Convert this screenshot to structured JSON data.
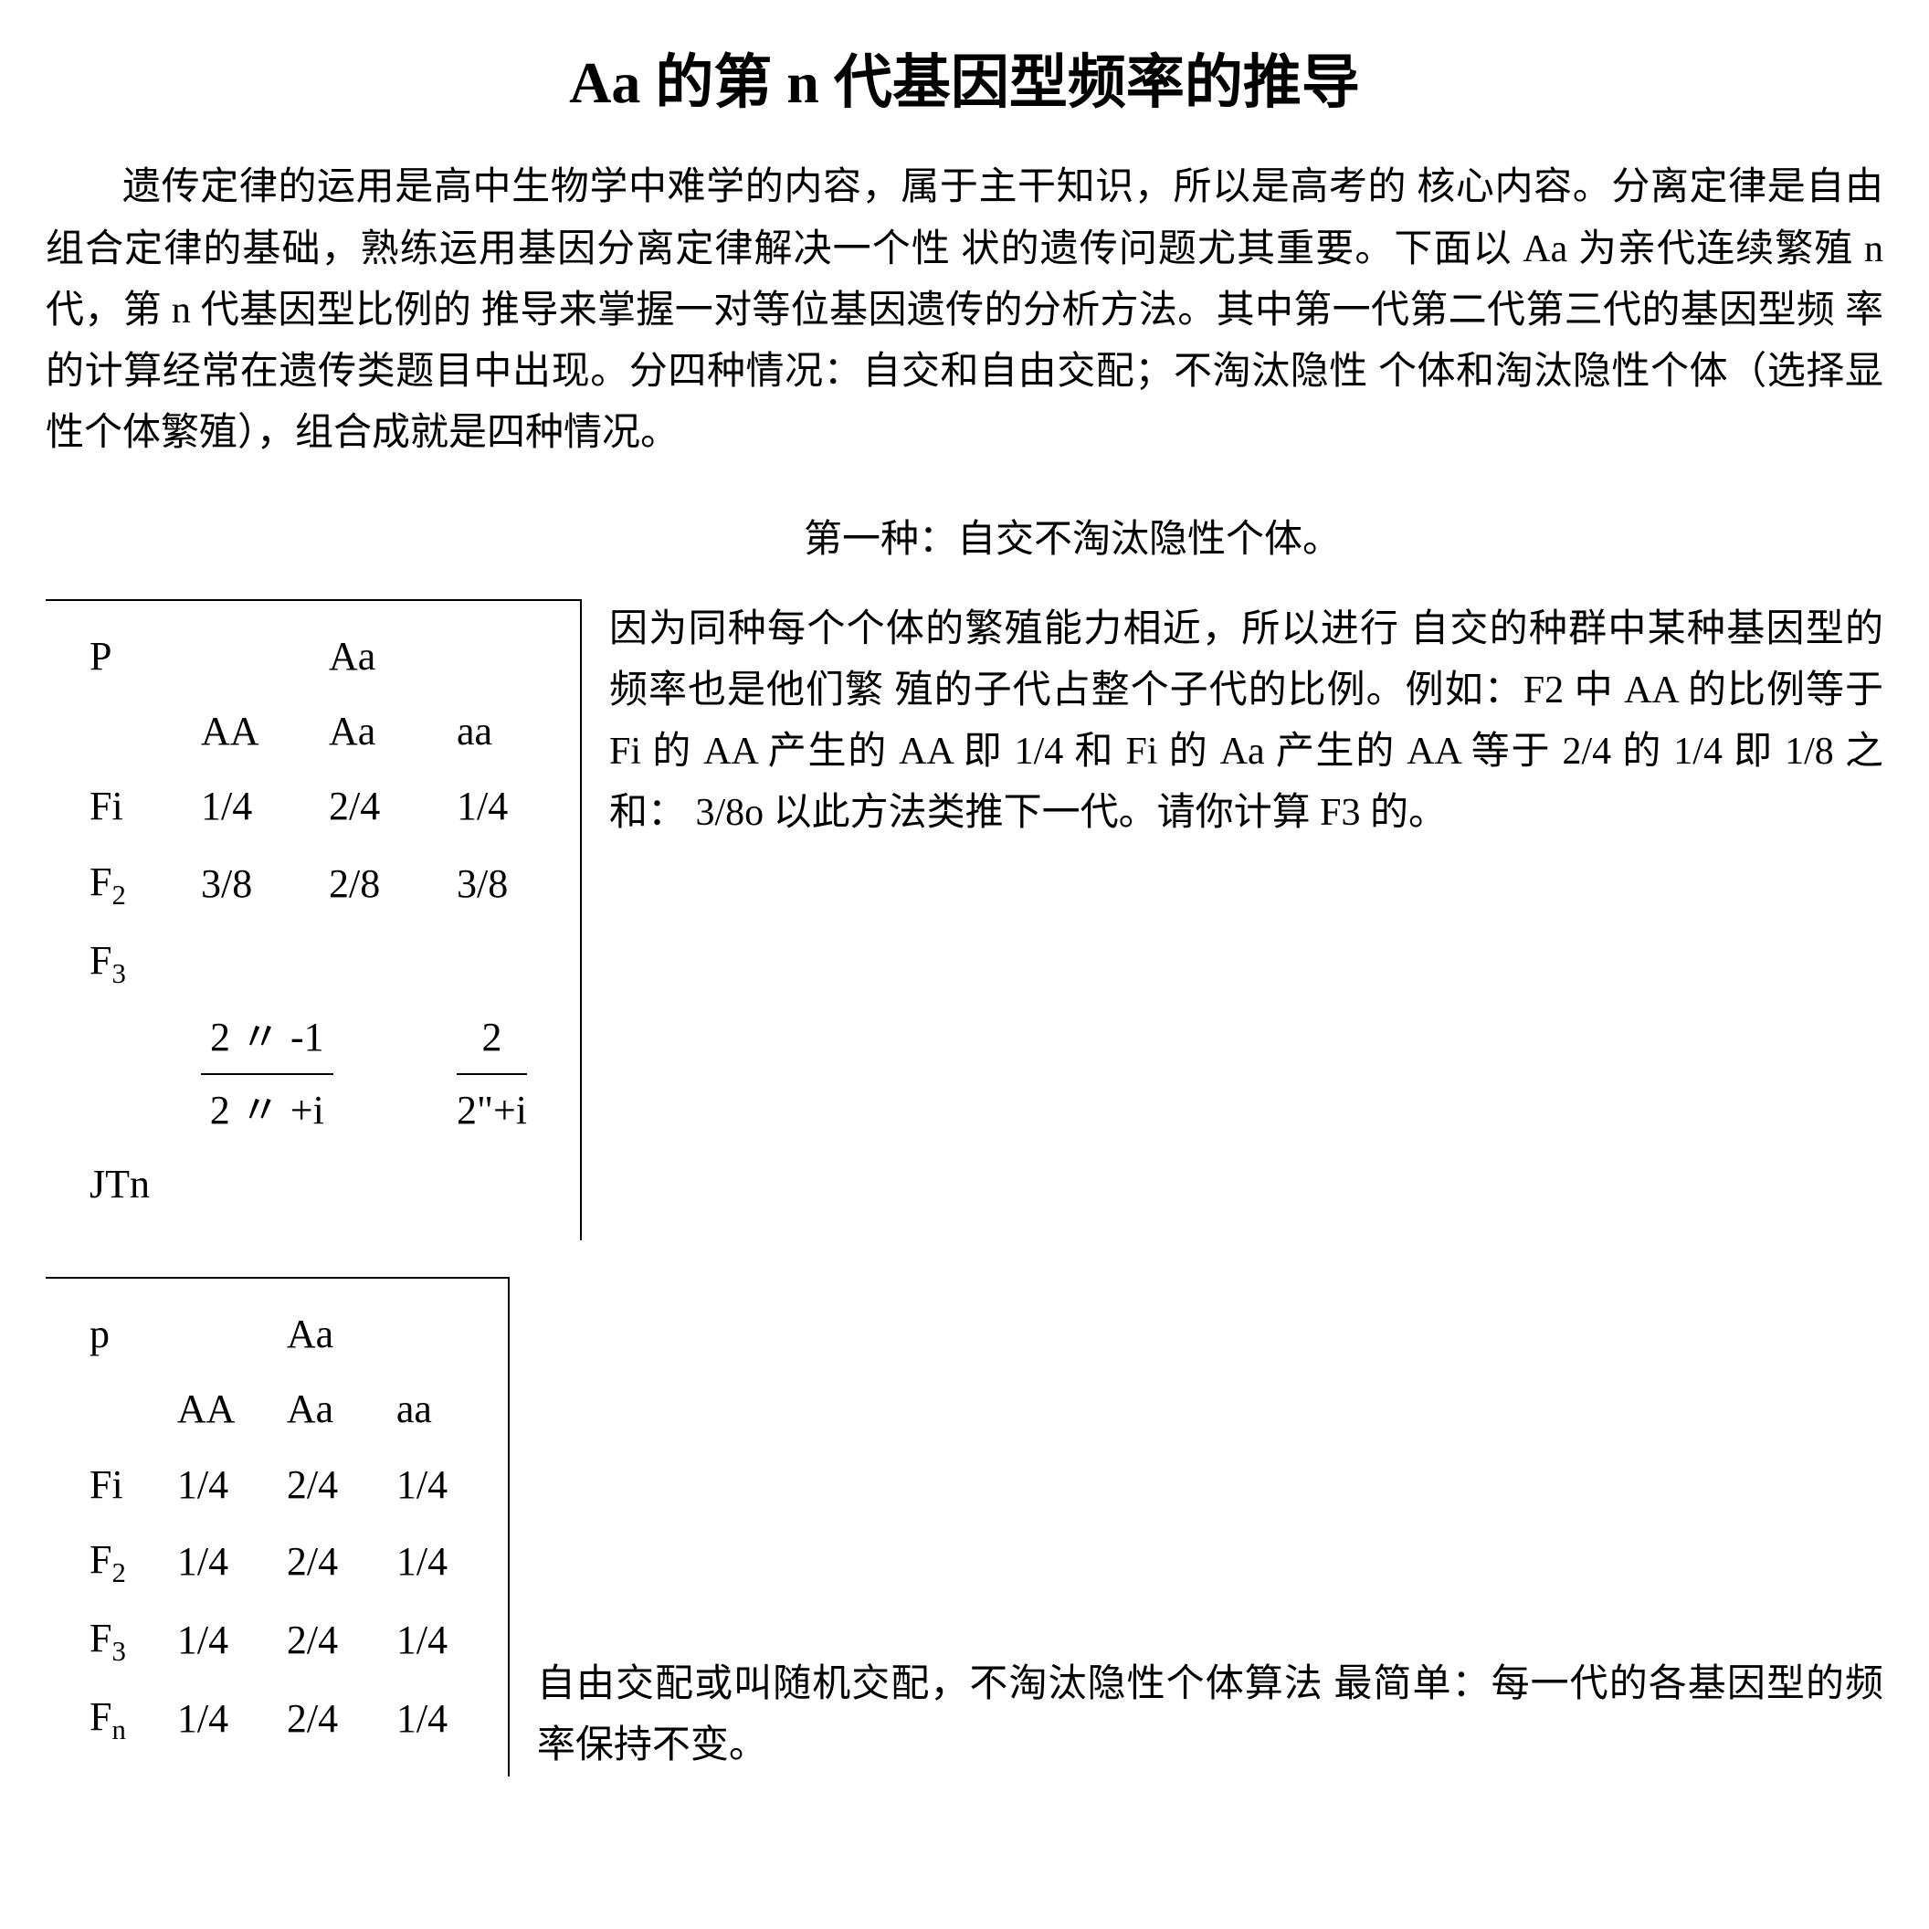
{
  "title": "Aa 的第 n 代基因型频率的推导",
  "intro": "遗传定律的运用是高中生物学中难学的内容，属于主干知识，所以是高考的 核心内容。分离定律是自由组合定律的基础，熟练运用基因分离定律解决一个性 状的遗传问题尤其重要。下面以 Aa 为亲代连续繁殖 n 代，第 n 代基因型比例的 推导来掌握一对等位基因遗传的分析方法。其中第一代第二代第三代的基因型频 率的计算经常在遗传类题目中出现。分四种情况：自交和自由交配；不淘汰隐性 个体和淘汰隐性个体（选择显性个体繁殖），组合成就是四种情况。",
  "case1": {
    "label": "第一种：自交不淘汰隐性个体。",
    "desc": "因为同种每个个体的繁殖能力相近，所以进行 自交的种群中某种基因型的频率也是他们繁 殖的子代占整个子代的比例。例如：F2 中 AA 的比例等于 Fi 的 AA 产生的 AA 即 1/4 和 Fi 的 Aa 产生的 AA 等于 2/4 的 1/4 即 1/8 之和：  3/8o 以此方法类推下一代。请你计算 F3 的。",
    "table": {
      "header0": "P",
      "header0b": "Aa",
      "colA": "AA",
      "colB": "Aa",
      "colC": "aa",
      "rowFi": "Fi",
      "Fi": [
        "1/4",
        "2/4",
        "1/4"
      ],
      "rowF2a": "F",
      "rowF2b": "2",
      "F2": [
        "3/8",
        "2/8",
        "3/8"
      ],
      "rowF3a": "F",
      "rowF3b": "3",
      "rowJTn": "JTn",
      "frac1_num": "2 〃 -1",
      "frac1_den": "2 〃 +i",
      "frac2_num": "2",
      "frac2_den": "2\"+i"
    }
  },
  "case2": {
    "desc": "自由交配或叫随机交配，不淘汰隐性个体算法 最简单：每一代的各基因型的频率保持不变。",
    "table": {
      "header0": "p",
      "header0b": "Aa",
      "colA": "AA",
      "colB": "Aa",
      "colC": "aa",
      "rowFi": "Fi",
      "Fi": [
        "1/4",
        "2/4",
        "1/4"
      ],
      "rowF2a": "F",
      "rowF2b": "2",
      "F2": [
        "1/4",
        "2/4",
        "1/4"
      ],
      "rowF3a": "F",
      "rowF3b": "3",
      "F3": [
        "1/4",
        "2/4",
        "1/4"
      ],
      "rowFna": "F",
      "rowFnb": "n",
      "Fn": [
        "1/4",
        "2/4",
        "1/4"
      ]
    }
  }
}
